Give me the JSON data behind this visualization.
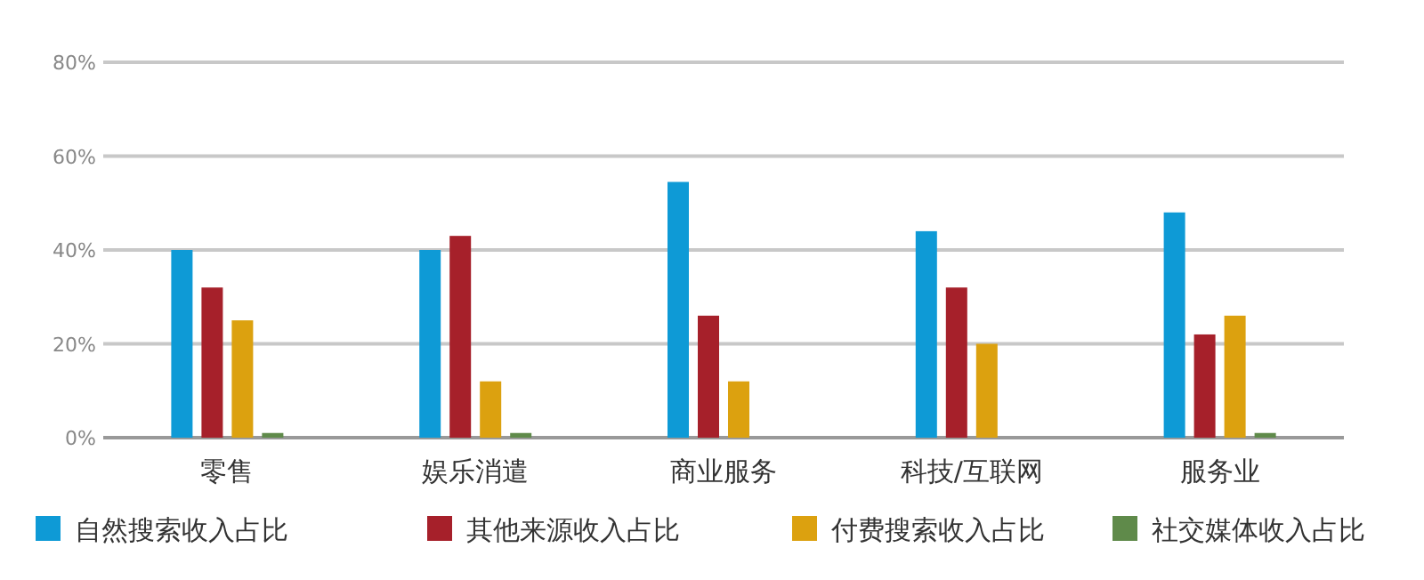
{
  "chart_data": {
    "type": "bar",
    "categories": [
      "零售",
      "娱乐消遣",
      "商业服务",
      "科技/互联网",
      "服务业"
    ],
    "series": [
      {
        "name": "自然搜索收入占比",
        "color": "#0e9ad6",
        "values": [
          40,
          40,
          54.5,
          44,
          48
        ]
      },
      {
        "name": "其他来源收入占比",
        "color": "#a6202a",
        "values": [
          32,
          43,
          26,
          32,
          22
        ]
      },
      {
        "name": "付费搜索收入占比",
        "color": "#dca10f",
        "values": [
          25,
          12,
          12,
          20,
          26
        ]
      },
      {
        "name": "社交媒体收入占比",
        "color": "#5f8a4a",
        "values": [
          1,
          1,
          0,
          0,
          1
        ]
      }
    ],
    "ylim": [
      0,
      80
    ],
    "yticks": [
      {
        "value": 0,
        "label": "0%"
      },
      {
        "value": 20,
        "label": "20%"
      },
      {
        "value": 40,
        "label": "40%"
      },
      {
        "value": 60,
        "label": "60%"
      },
      {
        "value": 80,
        "label": "80%"
      }
    ],
    "grid": "y",
    "legend": "bottom"
  }
}
